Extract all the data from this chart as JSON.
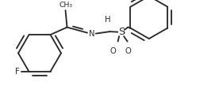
{
  "bg_color": "#ffffff",
  "line_color": "#2a2a2a",
  "line_width": 1.35,
  "font_size": 7.2,
  "figsize": [
    2.76,
    1.27
  ],
  "dpi": 100,
  "xlim": [
    0,
    2.76
  ],
  "ylim": [
    0,
    1.27
  ]
}
